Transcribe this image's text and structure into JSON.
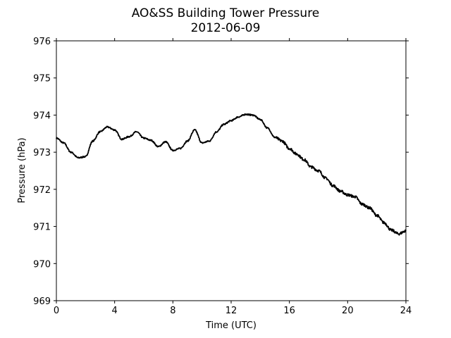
{
  "chart_data": {
    "type": "line",
    "title": "AO&SS Building Tower Pressure",
    "subtitle": "2012-06-09",
    "xlabel": "Time (UTC)",
    "ylabel": "Pressure (hPa)",
    "xlim": [
      0,
      24
    ],
    "ylim": [
      969,
      976
    ],
    "xticks": [
      0,
      4,
      8,
      12,
      16,
      20,
      24
    ],
    "yticks": [
      969,
      970,
      971,
      972,
      973,
      974,
      975,
      976
    ],
    "grid": false,
    "legend": "none",
    "line_color": "#000000",
    "series": [
      {
        "x": [
          0,
          0.5,
          1.0,
          1.5,
          2.0,
          2.5,
          3.0,
          3.5,
          4.0,
          4.5,
          5.0,
          5.5,
          6.0,
          6.5,
          7.0,
          7.5,
          8.0,
          8.5,
          9.0,
          9.5,
          10.0,
          10.5,
          11.0,
          11.5,
          12.0,
          12.5,
          13.0,
          13.5,
          14.0,
          14.5,
          15.0,
          15.5,
          16.0,
          16.5,
          17.0,
          17.5,
          18.0,
          18.5,
          19.0,
          19.5,
          20.0,
          20.5,
          21.0,
          21.5,
          22.0,
          22.5,
          23.0,
          23.5,
          24.0
        ],
        "y": [
          973.38,
          973.25,
          973.0,
          972.85,
          972.88,
          973.3,
          973.55,
          973.68,
          973.6,
          973.35,
          973.42,
          973.55,
          973.38,
          973.32,
          973.15,
          973.28,
          973.05,
          973.1,
          973.3,
          973.6,
          973.25,
          973.3,
          973.55,
          973.75,
          973.85,
          973.95,
          974.02,
          974.0,
          973.88,
          973.65,
          973.4,
          973.3,
          973.1,
          972.95,
          972.8,
          972.6,
          972.5,
          972.3,
          972.1,
          971.95,
          971.85,
          971.8,
          971.6,
          971.5,
          971.3,
          971.1,
          970.9,
          970.8,
          970.88
        ]
      }
    ]
  }
}
